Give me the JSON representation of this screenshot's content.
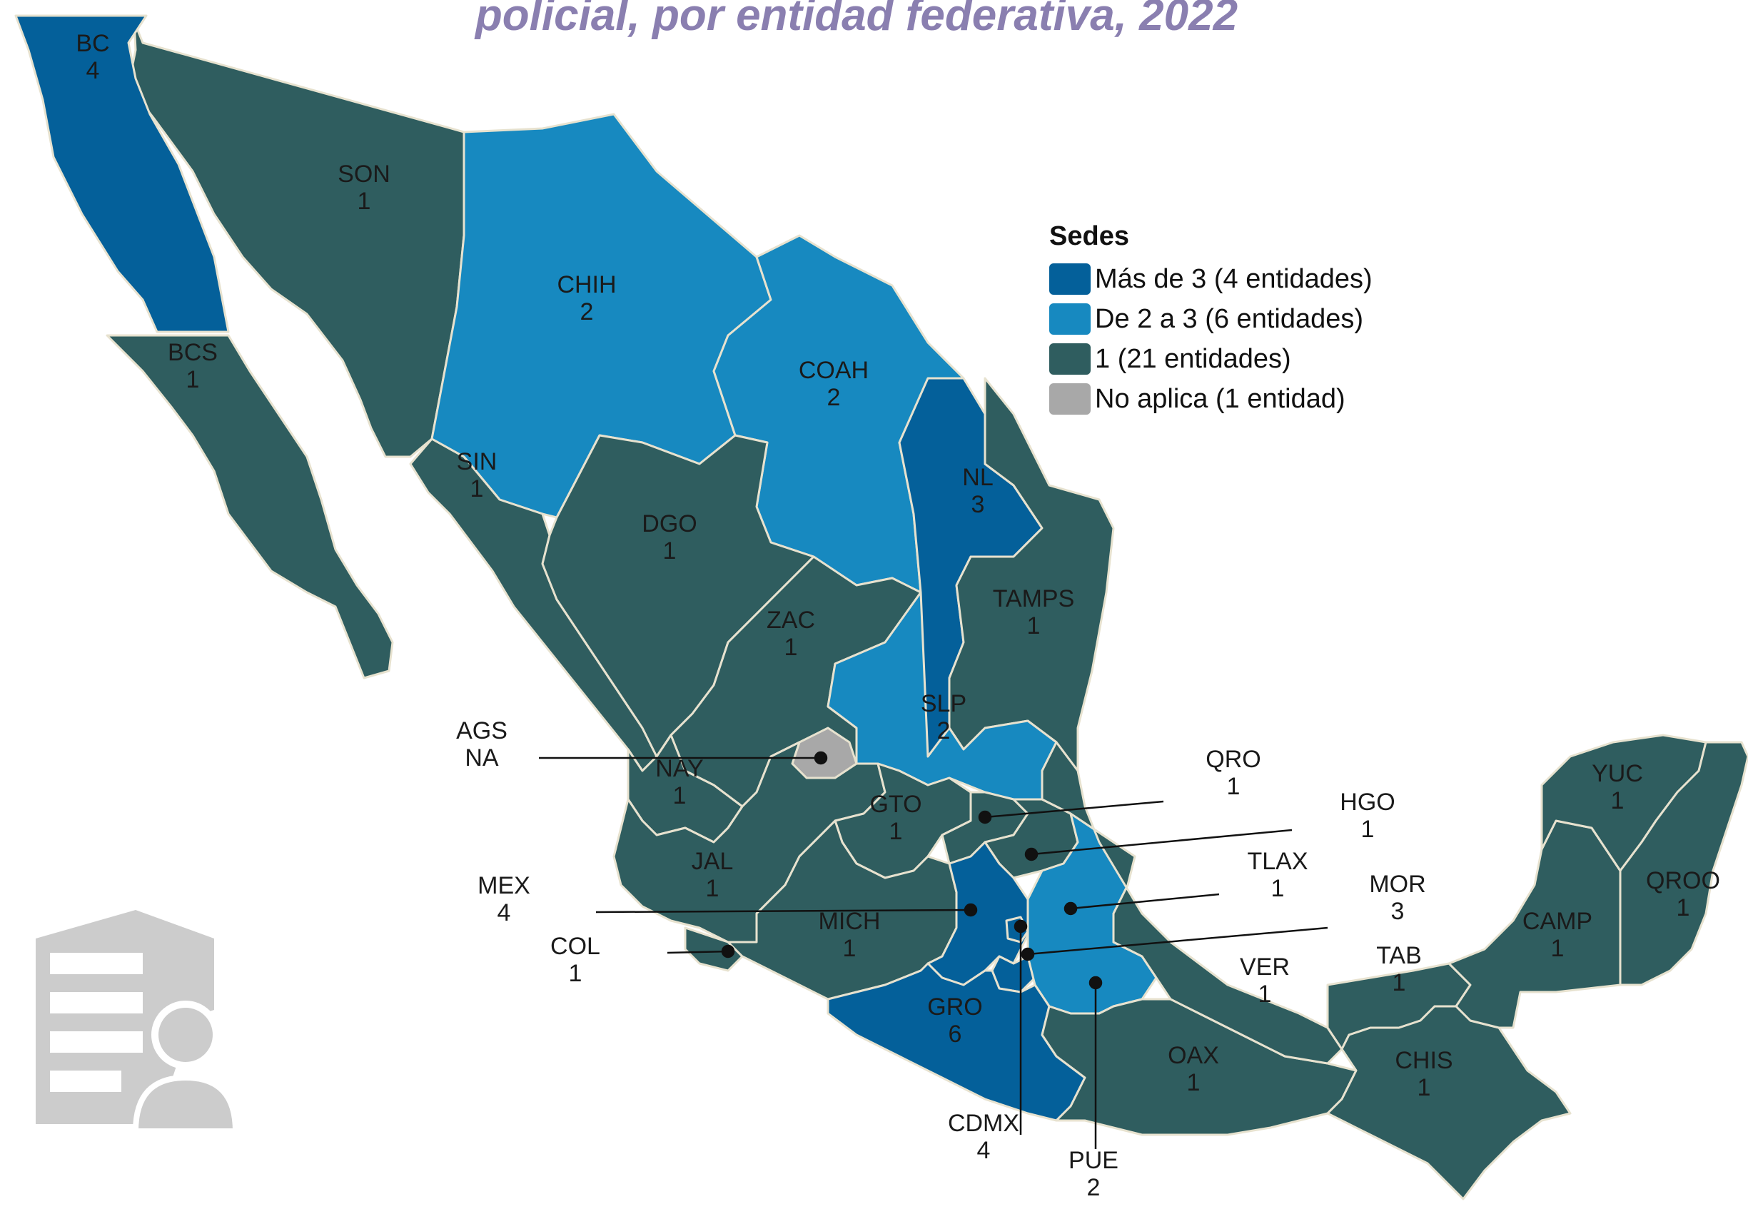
{
  "title": "policial, por entidad federativa, 2022",
  "colors": {
    "level4": "#04609a",
    "level2": "#1789c0",
    "level1": "#2f5d5f",
    "na": "#a8a8a8",
    "border": "#e7e2cf",
    "title": "#8a7fb0",
    "icon": "#cccccc"
  },
  "legend": {
    "title": "Sedes",
    "items": [
      {
        "label": "Más de 3 (4 entidades)",
        "level": "level4"
      },
      {
        "label": "De 2 a 3 (6 entidades)",
        "level": "level2"
      },
      {
        "label": "1 (21 entidades)",
        "level": "level1"
      },
      {
        "label": "No aplica (1 entidad)",
        "level": "na"
      }
    ]
  },
  "states": {
    "BC": {
      "abbr": "BC",
      "value": "4"
    },
    "BCS": {
      "abbr": "BCS",
      "value": "1"
    },
    "SON": {
      "abbr": "SON",
      "value": "1"
    },
    "CHIH": {
      "abbr": "CHIH",
      "value": "2"
    },
    "COAH": {
      "abbr": "COAH",
      "value": "2"
    },
    "NL": {
      "abbr": "NL",
      "value": "3"
    },
    "TAMPS": {
      "abbr": "TAMPS",
      "value": "1"
    },
    "SIN": {
      "abbr": "SIN",
      "value": "1"
    },
    "DGO": {
      "abbr": "DGO",
      "value": "1"
    },
    "ZAC": {
      "abbr": "ZAC",
      "value": "1"
    },
    "SLP": {
      "abbr": "SLP",
      "value": "2"
    },
    "AGS": {
      "abbr": "AGS",
      "value": "NA"
    },
    "NAY": {
      "abbr": "NAY",
      "value": "1"
    },
    "JAL": {
      "abbr": "JAL",
      "value": "1"
    },
    "GTO": {
      "abbr": "GTO",
      "value": "1"
    },
    "QRO": {
      "abbr": "QRO",
      "value": "1"
    },
    "HGO": {
      "abbr": "HGO",
      "value": "1"
    },
    "TLAX": {
      "abbr": "TLAX",
      "value": "1"
    },
    "MOR": {
      "abbr": "MOR",
      "value": "3"
    },
    "MEX": {
      "abbr": "MEX",
      "value": "4"
    },
    "CDMX": {
      "abbr": "CDMX",
      "value": "4"
    },
    "PUE": {
      "abbr": "PUE",
      "value": "2"
    },
    "COL": {
      "abbr": "COL",
      "value": "1"
    },
    "MICH": {
      "abbr": "MICH",
      "value": "1"
    },
    "GRO": {
      "abbr": "GRO",
      "value": "6"
    },
    "OAX": {
      "abbr": "OAX",
      "value": "1"
    },
    "VER": {
      "abbr": "VER",
      "value": "1"
    },
    "TAB": {
      "abbr": "TAB",
      "value": "1"
    },
    "CHIS": {
      "abbr": "CHIS",
      "value": "1"
    },
    "CAMP": {
      "abbr": "CAMP",
      "value": "1"
    },
    "YUC": {
      "abbr": "YUC",
      "value": "1"
    },
    "QROO": {
      "abbr": "QROO",
      "value": "1"
    }
  }
}
